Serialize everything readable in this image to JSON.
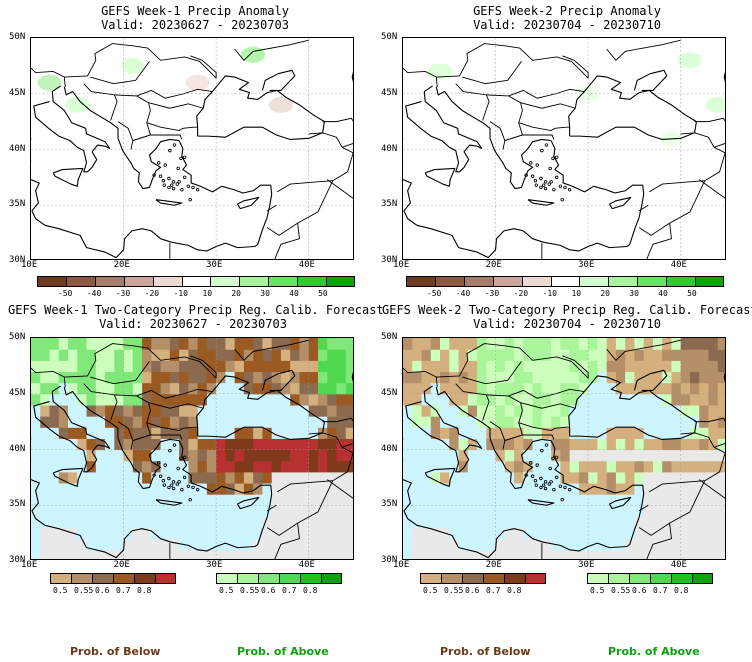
{
  "panels": [
    {
      "title": "GEFS Week-1 Precip Anomaly",
      "valid": "Valid: 20230627 - 20230703",
      "type": "anomaly"
    },
    {
      "title": "GEFS Week-2 Precip Anomaly",
      "valid": "Valid: 20230704 - 20230710",
      "type": "anomaly"
    },
    {
      "title": "GEFS Week-1 Two-Category Precip Reg. Calib. Forecast",
      "valid": "Valid: 20230627 - 20230703",
      "type": "prob"
    },
    {
      "title": "GEFS Week-2 Two-Category Precip Reg. Calib. Forecast",
      "valid": "Valid: 20230704 - 20230710",
      "type": "prob"
    }
  ],
  "lat_labels": [
    "50N",
    "45N",
    "40N",
    "35N",
    "30N"
  ],
  "lon_labels": [
    "10E",
    "20E",
    "30E",
    "40E"
  ],
  "anomaly_scale": {
    "labels": [
      "-50",
      "-40",
      "-30",
      "-20",
      "-10",
      "10",
      "20",
      "30",
      "40",
      "50"
    ],
    "colors": [
      "#6e3b20",
      "#8c5a44",
      "#a67c6b",
      "#c9a59a",
      "#ecd9d2",
      "#ffffff",
      "#d5ffd0",
      "#a6f59c",
      "#6ee065",
      "#38c436",
      "#10a010"
    ]
  },
  "below_scale": {
    "labels": [
      "0.5",
      "0.55",
      "0.6",
      "0.7",
      "0.8"
    ],
    "colors": [
      "#d4b07e",
      "#b58f68",
      "#8c6a4f",
      "#9a5a22",
      "#7e3a1a",
      "#b83030"
    ]
  },
  "above_scale": {
    "labels": [
      "0.5",
      "0.55",
      "0.6",
      "0.7",
      "0.8"
    ],
    "colors": [
      "#ccffbb",
      "#a8f59a",
      "#80e878",
      "#50d850",
      "#20c020",
      "#10a010"
    ]
  },
  "legend": {
    "below": "Prob. of Below",
    "above": "Prob. of Above"
  },
  "colors": {
    "sea": "#ccf5ff",
    "land_neutral": "#e9e9e9",
    "text_below": "#6b3a1a",
    "text_above": "#10a010"
  }
}
